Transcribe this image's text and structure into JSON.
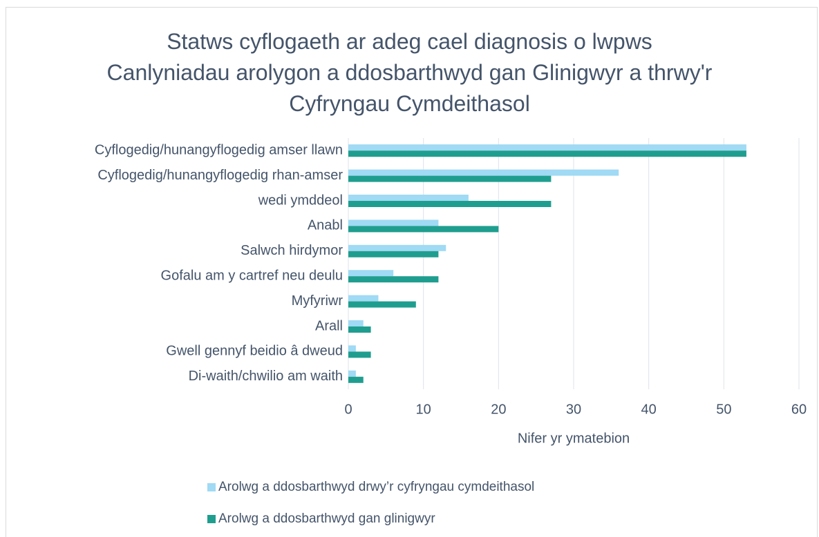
{
  "chart_data": {
    "type": "bar",
    "orientation": "horizontal",
    "title": "Statws cyflogaeth ar adeg cael diagnosis o lwpws",
    "subtitle": "Canlyniadau arolygon a ddosbarthwyd gan Glinigwyr a thrwy'r Cyfryngau Cymdeithasol",
    "x_label": "Nifer yr ymatebion",
    "categories": [
      "Cyflogedig/hunangyflogedig amser llawn",
      "Cyflogedig/hunangyflogedig rhan-amser",
      "wedi ymddeol",
      "Anabl",
      "Salwch hirdymor",
      "Gofalu am y cartref neu deulu",
      "Myfyriwr",
      "Arall",
      "Gwell gennyf beidio â dweud",
      "Di-waith/chwilio am waith"
    ],
    "series": [
      {
        "name": "Arolwg a ddosbarthwyd drwy’r cyfryngau cymdeithasol",
        "color": "#a0daf4",
        "values": [
          53,
          36,
          16,
          12,
          13,
          6,
          4,
          2,
          1,
          1
        ]
      },
      {
        "name": "Arolwg a ddosbarthwyd gan glinigwyr",
        "color": "#1f9e8f",
        "values": [
          53,
          27,
          27,
          20,
          12,
          12,
          9,
          3,
          3,
          2
        ]
      }
    ],
    "xlim": [
      0,
      60
    ],
    "xticks": [
      0,
      10,
      20,
      30,
      40,
      50,
      60
    ],
    "grid": true,
    "legend": "bottom"
  }
}
